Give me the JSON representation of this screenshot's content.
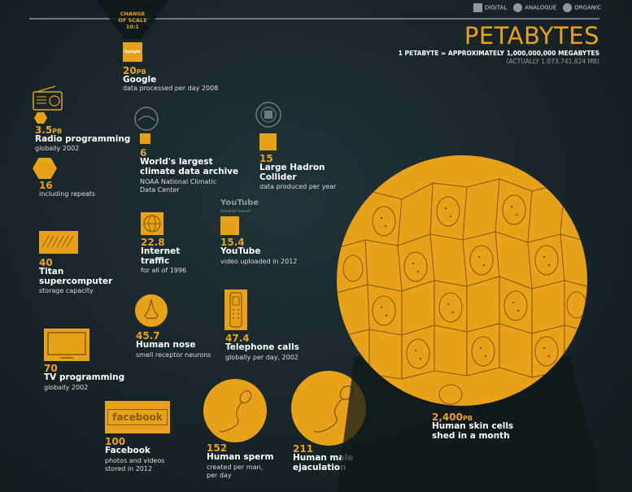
{
  "legend": {
    "digital": "DIGITAL",
    "analogue": "ANALOGUE",
    "organic": "ORGANIC"
  },
  "scale_note": {
    "line1": "CHANGE",
    "line2": "OF SCALE",
    "line3": "10:1"
  },
  "header": {
    "title": "PETABYTES",
    "line1": "1 PETABYTE = APPROXIMATELY 1,000,000,000 MEGABYTES",
    "line2": "(ACTUALLY 1,073,741,824 MB)"
  },
  "unit": "PB",
  "items": {
    "google": {
      "value": "20",
      "title": "Google",
      "sub": "data processed per day 2008",
      "logo": "Google"
    },
    "radio": {
      "value": "3.5",
      "title": "Radio programming",
      "sub": "globally 2002"
    },
    "radio_repeats": {
      "value": "16",
      "sub": "including repeats"
    },
    "climate": {
      "value": "6",
      "title1": "World's largest",
      "title2": "climate data archive",
      "sub1": "NOAA National Climatic",
      "sub2": "Data Center"
    },
    "lhc": {
      "value": "15",
      "title1": "Large Hadron",
      "title2": "Collider",
      "sub": "data produced per year"
    },
    "internet": {
      "value": "22.8",
      "title1": "Internet",
      "title2": "traffic",
      "sub": "for all of 1996"
    },
    "youtube": {
      "value": "15.4",
      "title": "YouTube",
      "sub": "video uploaded in 2012",
      "logo": "YouTube",
      "tagline": "Broadcast Yourself"
    },
    "titan": {
      "value": "40",
      "title1": "Titan",
      "title2": "supercomputer",
      "sub": "storage capacity"
    },
    "nose": {
      "value": "45.7",
      "title": "Human nose",
      "sub": "smell receptor neurons"
    },
    "telephone": {
      "value": "47.4",
      "title": "Telephone calls",
      "sub": "globally per day, 2002"
    },
    "tv": {
      "value": "70",
      "title": "TV programming",
      "sub": "globally 2002"
    },
    "facebook": {
      "value": "100",
      "title": "Facebook",
      "sub1": "photos and videos",
      "sub2": "stored in 2012",
      "logo": "facebook"
    },
    "sperm": {
      "value": "152",
      "title": "Human sperm",
      "sub1": "created per man,",
      "sub2": "per day"
    },
    "ejaculation": {
      "value": "211",
      "title1": "Human male",
      "title2": "ejaculation"
    },
    "skin": {
      "value": "2,400",
      "title1": "Human skin cells",
      "title2": "shed in a month"
    }
  },
  "colors": {
    "accent": "#e8a21a",
    "background": "#172529",
    "icon_stroke": "#8a5a06"
  }
}
